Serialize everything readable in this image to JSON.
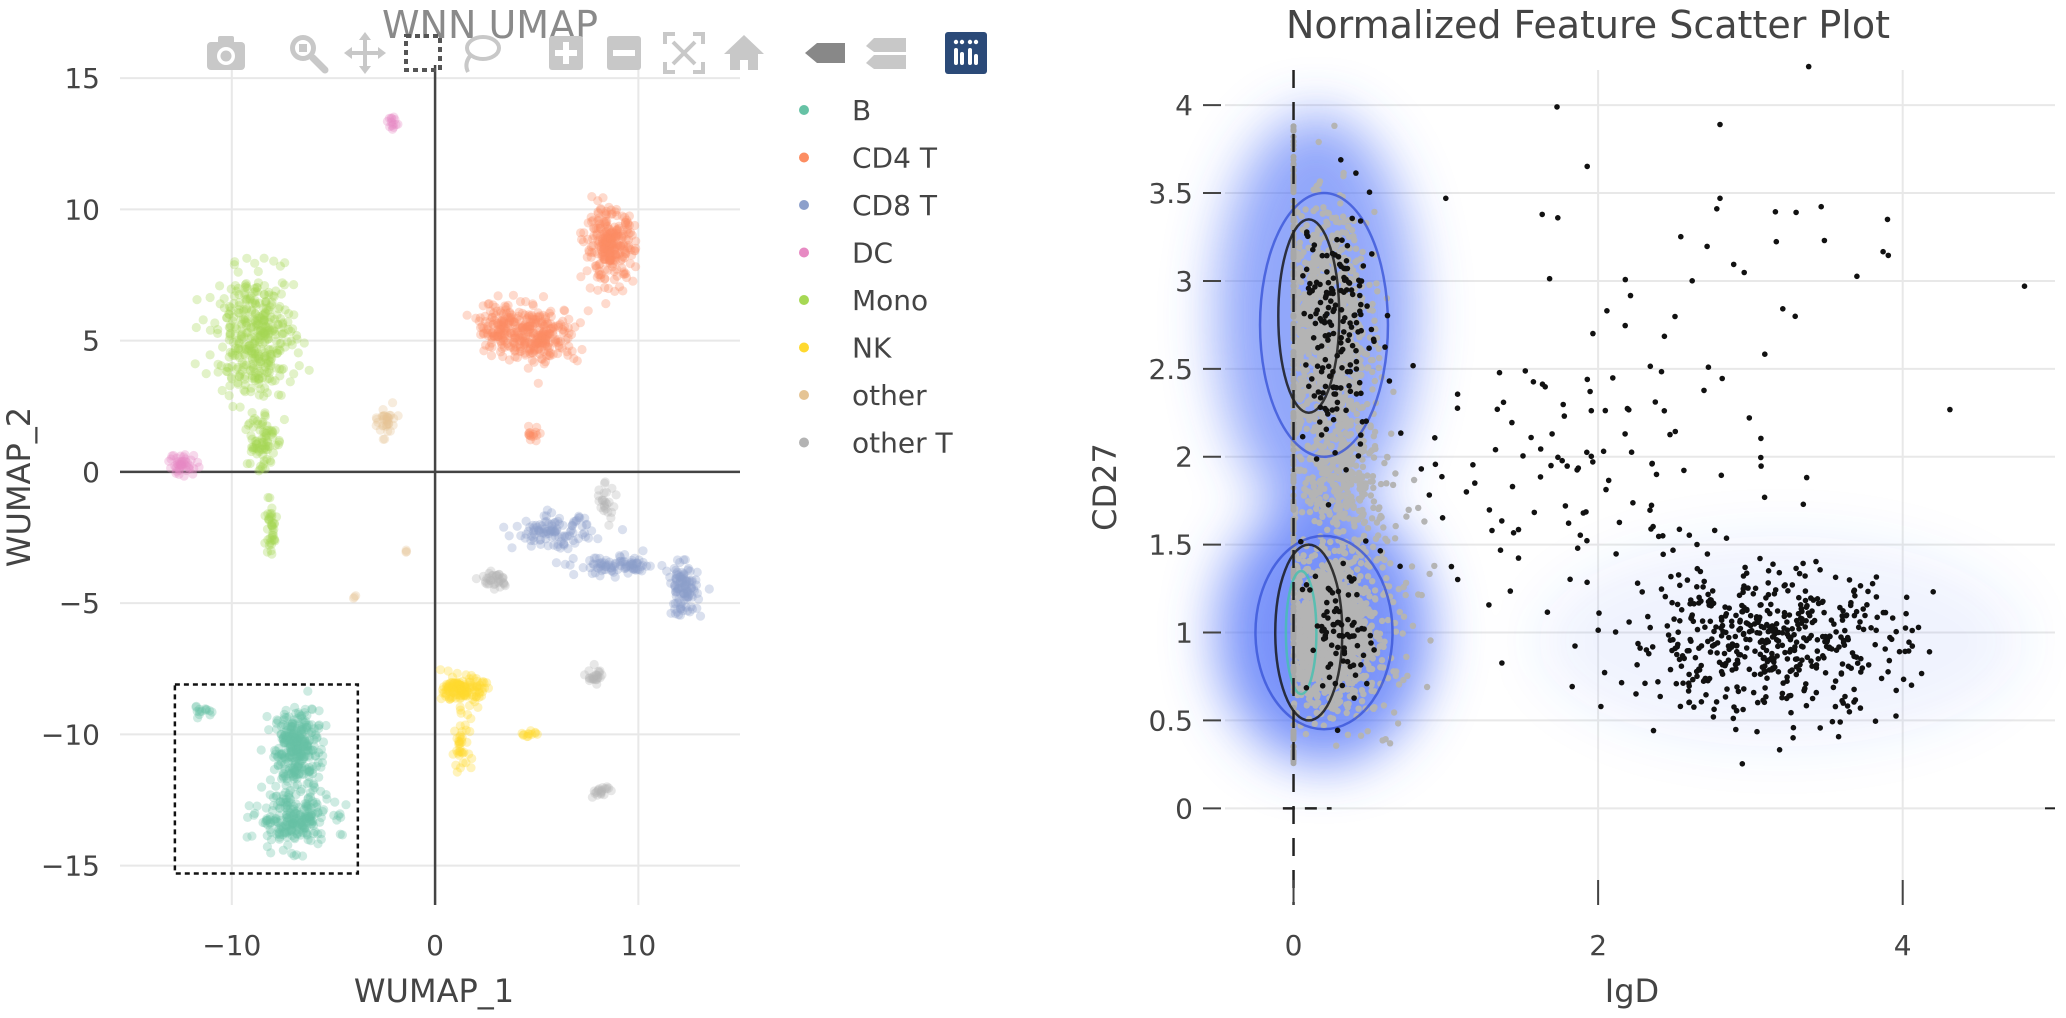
{
  "colors": {
    "axis_text": "#444444",
    "grid": "#e8e8e8",
    "zero_line": "#444444",
    "modebar_icon": "#c8c8c8",
    "modebar_active_bg": "#2b4a78",
    "selection_box": "#111111",
    "density": "#4a6cf7",
    "gray_points": "#b4b4b4",
    "black_points": "#111111"
  },
  "modebar": {
    "buttons": [
      {
        "name": "camera-icon",
        "active": false
      },
      {
        "name": "zoom-icon",
        "active": false
      },
      {
        "name": "pan-icon",
        "active": false
      },
      {
        "name": "box-select-icon",
        "active": false
      },
      {
        "name": "lasso-select-icon",
        "active": false
      },
      {
        "name": "zoom-in-icon",
        "active": false
      },
      {
        "name": "zoom-out-icon",
        "active": false
      },
      {
        "name": "autoscale-icon",
        "active": false
      },
      {
        "name": "reset-axes-icon",
        "active": false
      },
      {
        "name": "spike-lines-icon",
        "active": false
      },
      {
        "name": "compare-hover-icon",
        "active": false
      },
      {
        "name": "plotly-logo-icon",
        "active": true
      }
    ]
  },
  "chart_data": [
    {
      "type": "scatter",
      "title": "WNN UMAP",
      "xlabel": "WUMAP_1",
      "ylabel": "WUMAP_2",
      "xlim": [
        -15.5,
        15
      ],
      "ylim": [
        -16.5,
        15.5
      ],
      "xticks": [
        -10,
        0,
        10
      ],
      "xtick_labels": [
        "−10",
        "0",
        "10"
      ],
      "yticks": [
        15,
        10,
        5,
        0,
        -5,
        -10,
        -15
      ],
      "ytick_labels": [
        "15",
        "10",
        "5",
        "0",
        "−5",
        "−10",
        "−15"
      ],
      "grid": true,
      "legend_position": "right",
      "selection_box": {
        "x0": -12.8,
        "x1": -3.8,
        "y0": -15.3,
        "y1": -8.1
      },
      "series": [
        {
          "name": "B",
          "color": "#66c2a5",
          "clusters": [
            [
              -6.8,
              -10.5,
              0.9,
              1.2,
              300
            ],
            [
              -7.0,
              -13.2,
              1.5,
              0.9,
              240
            ],
            [
              -11.4,
              -9.1,
              0.4,
              0.15,
              14
            ]
          ]
        },
        {
          "name": "CD4 T",
          "color": "#fc8d62",
          "clusters": [
            [
              8.6,
              8.6,
              1.0,
              1.1,
              260
            ],
            [
              5.0,
              5.2,
              1.7,
              0.9,
              260
            ],
            [
              3.2,
              5.6,
              0.9,
              0.7,
              100
            ],
            [
              4.8,
              1.4,
              0.3,
              0.3,
              15
            ]
          ]
        },
        {
          "name": "CD8 T",
          "color": "#8da0cb",
          "clusters": [
            [
              5.8,
              -2.3,
              1.6,
              0.5,
              110
            ],
            [
              9.0,
              -3.6,
              1.7,
              0.3,
              90
            ],
            [
              12.2,
              -4.5,
              0.6,
              0.8,
              110
            ]
          ]
        },
        {
          "name": "DC",
          "color": "#e78ac3",
          "clusters": [
            [
              -12.4,
              0.3,
              0.6,
              0.35,
              45
            ],
            [
              -2.1,
              13.3,
              0.2,
              0.3,
              14
            ]
          ]
        },
        {
          "name": "Mono",
          "color": "#a6d854",
          "clusters": [
            [
              -8.8,
              5.2,
              1.6,
              1.9,
              380
            ],
            [
              -8.6,
              1.2,
              0.6,
              1.1,
              80
            ],
            [
              -8.1,
              -2.2,
              0.3,
              0.9,
              40
            ]
          ]
        },
        {
          "name": "NK",
          "color": "#ffd92f",
          "clusters": [
            [
              1.4,
              -8.3,
              0.8,
              0.4,
              140
            ],
            [
              1.3,
              -10.3,
              0.4,
              0.9,
              40
            ],
            [
              4.6,
              -10.0,
              0.4,
              0.1,
              12
            ]
          ]
        },
        {
          "name": "other",
          "color": "#e5c494",
          "clusters": [
            [
              -2.4,
              1.9,
              0.35,
              0.45,
              35
            ],
            [
              -4.0,
              -4.8,
              0.1,
              0.1,
              3
            ],
            [
              -1.4,
              -3.0,
              0.1,
              0.1,
              3
            ]
          ]
        },
        {
          "name": "other T",
          "color": "#b3b3b3",
          "clusters": [
            [
              2.9,
              -4.1,
              0.6,
              0.3,
              35
            ],
            [
              8.3,
              -1.2,
              0.5,
              0.6,
              25
            ],
            [
              7.9,
              -7.8,
              0.3,
              0.3,
              25
            ],
            [
              8.1,
              -12.2,
              0.4,
              0.2,
              20
            ]
          ]
        }
      ]
    },
    {
      "type": "scatter",
      "title": "Normalized Feature Scatter Plot",
      "xlabel": "IgD",
      "ylabel": "CD27",
      "xlim": [
        -0.45,
        5.0
      ],
      "ylim": [
        -0.55,
        4.2
      ],
      "xticks": [
        0,
        2,
        4
      ],
      "xtick_labels": [
        "0",
        "2",
        "4"
      ],
      "yticks": [
        0,
        0.5,
        1,
        1.5,
        2,
        2.5,
        3,
        3.5,
        4
      ],
      "ytick_labels": [
        "0",
        "0.5",
        "1",
        "1.5",
        "2",
        "2.5",
        "3",
        "3.5",
        "4"
      ],
      "grid": true,
      "legend_position": "none",
      "density_regions": [
        {
          "cx": 0.2,
          "cy": 1.0,
          "rx": 0.7,
          "ry": 0.75,
          "opacity": 0.75
        },
        {
          "cx": 0.15,
          "cy": 2.8,
          "rx": 0.65,
          "ry": 1.15,
          "opacity": 0.6
        },
        {
          "cx": 3.2,
          "cy": 0.95,
          "rx": 1.6,
          "ry": 0.6,
          "opacity": 0.08
        }
      ],
      "gray_clusters": [
        [
          0.22,
          1.0,
          0.24,
          0.32,
          1500
        ],
        [
          0.22,
          2.7,
          0.24,
          0.55,
          1100
        ],
        [
          0.3,
          1.9,
          0.22,
          0.35,
          300
        ],
        [
          0.5,
          1.2,
          0.3,
          0.6,
          200
        ]
      ],
      "black_clusters": [
        [
          3.1,
          0.95,
          0.65,
          0.3,
          500
        ],
        [
          0.3,
          2.7,
          0.18,
          0.55,
          170
        ],
        [
          0.3,
          1.0,
          0.18,
          0.3,
          80
        ],
        [
          1.9,
          1.9,
          0.9,
          0.65,
          120
        ],
        [
          2.6,
          3.0,
          1.1,
          0.6,
          25
        ]
      ],
      "black_points_extra": [
        [
          1.73,
          3.99
        ],
        [
          2.8,
          3.89
        ],
        [
          3.9,
          3.35
        ],
        [
          4.8,
          2.97
        ],
        [
          3.3,
          3.39
        ],
        [
          1.0,
          3.47
        ],
        [
          2.8,
          3.47
        ]
      ]
    }
  ]
}
